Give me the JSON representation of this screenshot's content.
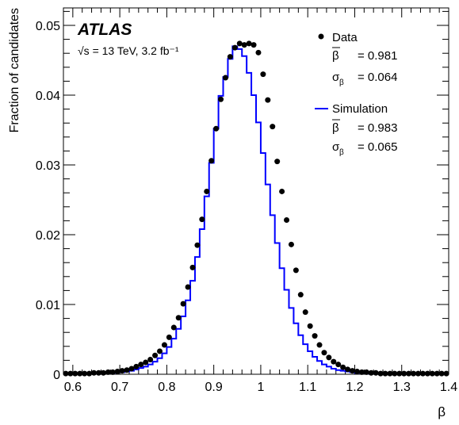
{
  "chart_data": {
    "type": "scatter",
    "xlabel": "β",
    "ylabel": "Fraction of candidates",
    "xlim": [
      0.58,
      1.4
    ],
    "ylim": [
      0,
      0.0525
    ],
    "x_ticks": [
      "0.6",
      "0.7",
      "0.8",
      "0.9",
      "1",
      "1.1",
      "1.2",
      "1.3",
      "1.4"
    ],
    "y_ticks": [
      "0",
      "0.01",
      "0.02",
      "0.03",
      "0.04",
      "0.05"
    ],
    "grid": false,
    "legend_position": "top-right",
    "experiment_label": "ATLAS",
    "energy_label": "√s = 13 TeV, 3.2 fb⁻¹",
    "legend": {
      "data": {
        "label": "Data",
        "beta_mean_label": "β",
        "beta_mean_value": "= 0.981",
        "sigma_label": "σ",
        "sigma_sub": "β",
        "sigma_value": "= 0.064"
      },
      "sim": {
        "label": "Simulation",
        "beta_mean_label": "β",
        "beta_mean_value": "= 0.983",
        "sigma_label": "σ",
        "sigma_sub": "β",
        "sigma_value": "= 0.065"
      }
    },
    "series": [
      {
        "name": "Data",
        "style": "markers",
        "color": "#000000",
        "x": [
          0.585,
          0.595,
          0.605,
          0.615,
          0.625,
          0.635,
          0.645,
          0.655,
          0.665,
          0.675,
          0.685,
          0.695,
          0.705,
          0.715,
          0.725,
          0.735,
          0.745,
          0.755,
          0.765,
          0.775,
          0.785,
          0.795,
          0.805,
          0.815,
          0.825,
          0.835,
          0.845,
          0.855,
          0.865,
          0.875,
          0.885,
          0.895,
          0.905,
          0.915,
          0.925,
          0.935,
          0.945,
          0.955,
          0.965,
          0.975,
          0.985,
          0.995,
          1.005,
          1.015,
          1.025,
          1.035,
          1.045,
          1.055,
          1.065,
          1.075,
          1.085,
          1.095,
          1.105,
          1.115,
          1.125,
          1.135,
          1.145,
          1.155,
          1.165,
          1.175,
          1.185,
          1.195,
          1.205,
          1.215,
          1.225,
          1.235,
          1.245,
          1.255,
          1.265,
          1.275,
          1.285,
          1.295,
          1.305,
          1.315,
          1.325,
          1.335,
          1.345,
          1.355,
          1.365,
          1.375,
          1.385,
          1.395
        ],
        "y": [
          0.0001,
          0.0001,
          0.0001,
          0.0001,
          0.0001,
          0.0001,
          0.0002,
          0.0002,
          0.0002,
          0.0003,
          0.0003,
          0.0004,
          0.0005,
          0.0006,
          0.0008,
          0.0011,
          0.0014,
          0.0017,
          0.0021,
          0.0027,
          0.0033,
          0.0042,
          0.0053,
          0.0067,
          0.0081,
          0.0101,
          0.0125,
          0.0153,
          0.0185,
          0.0222,
          0.0262,
          0.0306,
          0.0352,
          0.0394,
          0.0425,
          0.0455,
          0.0468,
          0.0474,
          0.0472,
          0.0474,
          0.0472,
          0.0461,
          0.043,
          0.0393,
          0.0355,
          0.0305,
          0.0262,
          0.0221,
          0.0186,
          0.0149,
          0.0114,
          0.0089,
          0.0069,
          0.0055,
          0.0042,
          0.0031,
          0.0024,
          0.0018,
          0.0014,
          0.001,
          0.0007,
          0.0005,
          0.0004,
          0.0003,
          0.0003,
          0.0002,
          0.0002,
          0.0001,
          0.0001,
          0.0001,
          0.0001,
          0.0001,
          0.0001,
          0.0001,
          0.0001,
          0.0001,
          0.0001,
          0.0001,
          0.0001,
          0.0001,
          0.0001,
          0.0001
        ]
      },
      {
        "name": "Simulation",
        "style": "step",
        "color": "#0000ff",
        "bin_edges": [
          0.58,
          0.59,
          0.6,
          0.61,
          0.62,
          0.63,
          0.64,
          0.65,
          0.66,
          0.67,
          0.68,
          0.69,
          0.7,
          0.71,
          0.72,
          0.73,
          0.74,
          0.75,
          0.76,
          0.77,
          0.78,
          0.79,
          0.8,
          0.81,
          0.82,
          0.83,
          0.84,
          0.85,
          0.86,
          0.87,
          0.88,
          0.89,
          0.9,
          0.91,
          0.92,
          0.93,
          0.94,
          0.95,
          0.96,
          0.97,
          0.98,
          0.99,
          1.0,
          1.01,
          1.02,
          1.03,
          1.04,
          1.05,
          1.06,
          1.07,
          1.08,
          1.09,
          1.1,
          1.11,
          1.12,
          1.13,
          1.14,
          1.15,
          1.16,
          1.17,
          1.18,
          1.19,
          1.2,
          1.21,
          1.22,
          1.23,
          1.24,
          1.25,
          1.26,
          1.27,
          1.28,
          1.29,
          1.3,
          1.31,
          1.32,
          1.33,
          1.34,
          1.35,
          1.36,
          1.37,
          1.38,
          1.39,
          1.4
        ],
        "values": [
          0.0001,
          0.0001,
          0.0001,
          0.0001,
          0.0001,
          0.0001,
          0.0001,
          0.0001,
          0.0002,
          0.0002,
          0.0002,
          0.0003,
          0.0003,
          0.0004,
          0.0005,
          0.0007,
          0.0009,
          0.0011,
          0.0014,
          0.0018,
          0.0023,
          0.003,
          0.0039,
          0.0051,
          0.0065,
          0.0083,
          0.0106,
          0.0134,
          0.0168,
          0.0208,
          0.0255,
          0.0303,
          0.0352,
          0.0399,
          0.0426,
          0.0452,
          0.047,
          0.0466,
          0.0456,
          0.0432,
          0.04,
          0.0361,
          0.0317,
          0.0272,
          0.0228,
          0.0188,
          0.0152,
          0.0121,
          0.0095,
          0.0073,
          0.0056,
          0.0043,
          0.0033,
          0.0025,
          0.0019,
          0.0014,
          0.0011,
          0.0008,
          0.0006,
          0.0005,
          0.0004,
          0.0003,
          0.0002,
          0.0002,
          0.0002,
          0.0001,
          0.0001,
          0.0001,
          0.0001,
          0.0001,
          0.0001,
          0.0001,
          0.0001,
          0.0001,
          0.0001,
          0.0001,
          0.0001,
          0.0001,
          0.0001,
          0.0001,
          0.0001,
          0.0001
        ]
      }
    ]
  }
}
